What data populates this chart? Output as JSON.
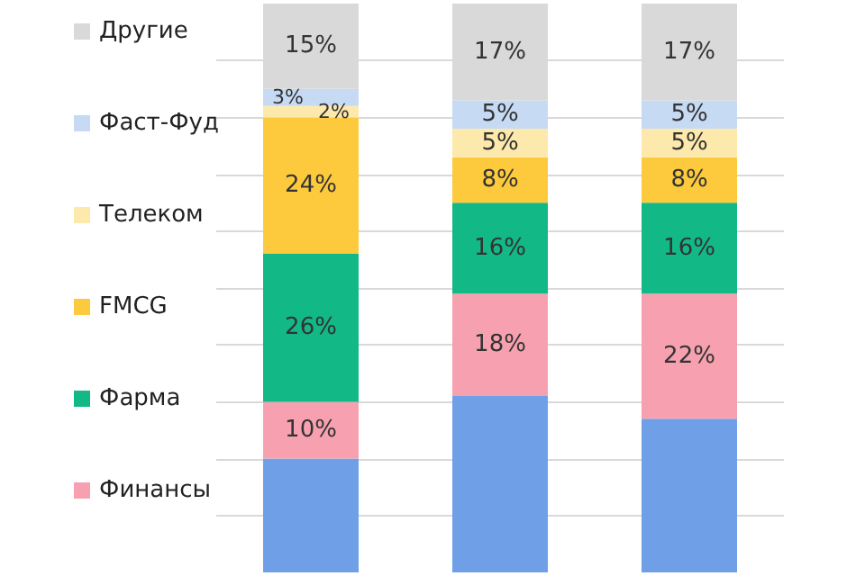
{
  "chart_data": {
    "type": "bar",
    "stacked": true,
    "categories": [
      null,
      null,
      null
    ],
    "series": [
      {
        "color": "#6f9fe6",
        "values": [
          20,
          31,
          27
        ],
        "value_labels": [
          null,
          null,
          null
        ]
      },
      {
        "name": "Финансы",
        "color": "#f7a1b0",
        "values": [
          10,
          18,
          22
        ],
        "value_labels": [
          "10%",
          "18%",
          "22%"
        ]
      },
      {
        "name": "Фарма",
        "color": "#12b886",
        "values": [
          26,
          16,
          16
        ],
        "value_labels": [
          "26%",
          "16%",
          "16%"
        ]
      },
      {
        "name": "FMCG",
        "color": "#fcca3c",
        "values": [
          24,
          8,
          8
        ],
        "value_labels": [
          "24%",
          "8%",
          "8%"
        ]
      },
      {
        "name": "Телеком",
        "color": "#fde9ac",
        "values": [
          2,
          5,
          5
        ],
        "value_labels": [
          "2%",
          "5%",
          "5%"
        ]
      },
      {
        "name": "Фаст-Фуд",
        "color": "#c6daf4",
        "values": [
          3,
          5,
          5
        ],
        "value_labels": [
          "3%",
          "5%",
          "5%"
        ]
      },
      {
        "name": "Другие",
        "color": "#d9d9d9",
        "values": [
          15,
          17,
          17
        ],
        "value_labels": [
          "15%",
          "17%",
          "17%"
        ]
      }
    ],
    "ylim": [
      0,
      100
    ],
    "yticks": [
      10,
      20,
      30,
      40,
      50,
      60,
      70,
      80,
      90
    ],
    "grid": "y",
    "tick_labels": false,
    "legend": "left"
  }
}
